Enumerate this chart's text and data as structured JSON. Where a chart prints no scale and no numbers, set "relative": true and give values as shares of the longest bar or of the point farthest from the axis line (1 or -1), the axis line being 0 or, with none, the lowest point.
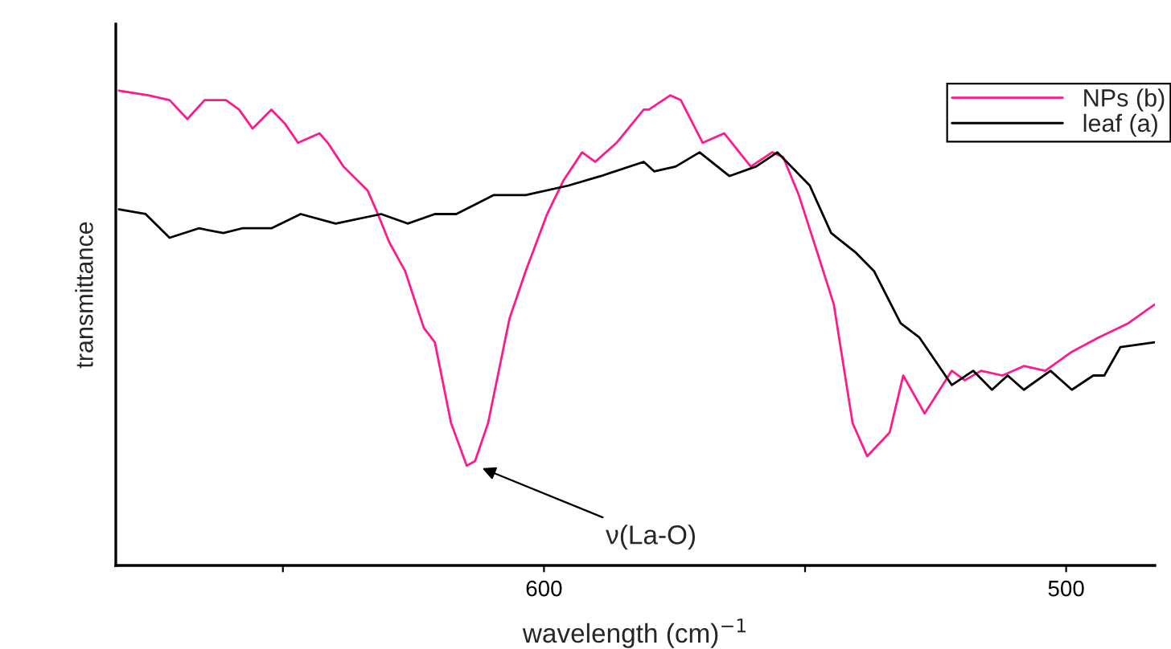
{
  "chart_data": {
    "type": "line",
    "relative": true,
    "xlabel": "wavelength (cm)$^{−1}$",
    "ylabel": "transmittance",
    "xlim": [
      682,
      483
    ],
    "xticks": [
      {
        "value": 650,
        "label": null
      },
      600,
      {
        "value": 550,
        "label": null
      },
      500
    ],
    "legend": "top right",
    "grid": false,
    "annotations": [
      {
        "text": "ν(La-O)",
        "x": 613,
        "y": 0.21
      }
    ],
    "series": [
      {
        "name": "NPs (b)",
        "color": "#ff1a8c",
        "x": [
          681.4,
          675.8,
          671.7,
          668.3,
          665.0,
          660.9,
          658.4,
          655.8,
          652.2,
          649.6,
          647.1,
          643.0,
          641.4,
          638.4,
          633.8,
          632.2,
          629.6,
          626.6,
          623.0,
          620.9,
          617.8,
          614.8,
          613.2,
          610.7,
          606.6,
          603.5,
          599.4,
          596.3,
          592.7,
          590.2,
          586.1,
          580.9,
          579.9,
          575.8,
          573.8,
          569.6,
          565.5,
          560.4,
          556.3,
          554.2,
          551.2,
          547.1,
          544.5,
          540.9,
          538.1,
          533.8,
          531.2,
          527.1,
          521.9,
          519.4,
          516.3,
          512.2,
          508.1,
          504.0,
          498.9,
          493.8,
          488.1,
          483.0
        ],
        "values": [
          1.0,
          0.99,
          0.98,
          0.94,
          0.98,
          0.98,
          0.96,
          0.92,
          0.96,
          0.93,
          0.89,
          0.91,
          0.89,
          0.84,
          0.79,
          0.75,
          0.68,
          0.62,
          0.5,
          0.47,
          0.3,
          0.21,
          0.22,
          0.3,
          0.52,
          0.62,
          0.74,
          0.81,
          0.87,
          0.85,
          0.89,
          0.96,
          0.96,
          0.99,
          0.98,
          0.89,
          0.91,
          0.84,
          0.87,
          0.86,
          0.78,
          0.64,
          0.55,
          0.3,
          0.23,
          0.28,
          0.4,
          0.32,
          0.41,
          0.39,
          0.41,
          0.4,
          0.42,
          0.41,
          0.45,
          0.48,
          0.51,
          0.55
        ]
      },
      {
        "name": "leaf (a)",
        "color": "#000000",
        "x": [
          681.4,
          676.3,
          671.7,
          666.1,
          661.4,
          657.8,
          652.2,
          646.6,
          639.9,
          631.2,
          626.1,
          620.9,
          616.8,
          609.6,
          603.5,
          595.3,
          589.1,
          580.9,
          578.9,
          574.8,
          570.2,
          564.5,
          559.4,
          555.3,
          549.1,
          545.0,
          540.4,
          536.8,
          531.7,
          528.1,
          521.9,
          517.8,
          514.2,
          511.2,
          508.1,
          503.0,
          498.9,
          494.8,
          492.7,
          489.6,
          483.0
        ],
        "values": [
          0.75,
          0.74,
          0.69,
          0.71,
          0.7,
          0.71,
          0.71,
          0.74,
          0.72,
          0.74,
          0.72,
          0.74,
          0.74,
          0.78,
          0.78,
          0.8,
          0.82,
          0.85,
          0.83,
          0.84,
          0.87,
          0.82,
          0.84,
          0.87,
          0.8,
          0.7,
          0.66,
          0.62,
          0.51,
          0.48,
          0.38,
          0.41,
          0.37,
          0.4,
          0.37,
          0.41,
          0.37,
          0.4,
          0.4,
          0.46,
          0.47
        ]
      }
    ]
  }
}
